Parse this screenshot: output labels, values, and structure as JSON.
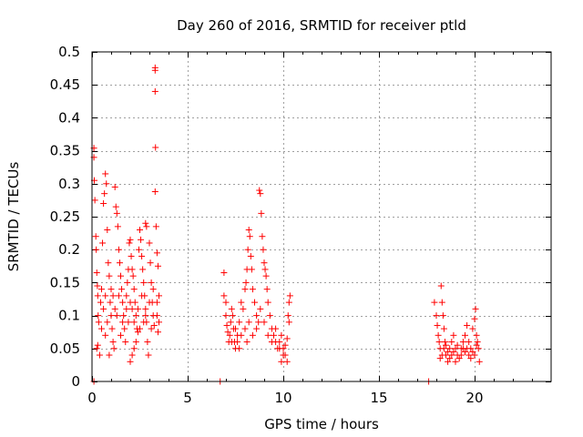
{
  "chart_data": {
    "type": "scatter",
    "title": "Day 260 of 2016, SRMTID for receiver ptld",
    "xlabel": "GPS time / hours",
    "ylabel": "SRMTID / TECUs",
    "xlim": [
      0,
      24
    ],
    "ylim": [
      0,
      0.5
    ],
    "x_ticks": [
      0,
      5,
      10,
      15,
      20
    ],
    "y_ticks": [
      0,
      0.05,
      0.1,
      0.15,
      0.2,
      0.25,
      0.3,
      0.35,
      0.4,
      0.45,
      0.5
    ],
    "x_tick_labels": [
      "0",
      "5",
      "10",
      "15",
      "20"
    ],
    "y_tick_labels": [
      "0",
      "0.05",
      "0.1",
      "0.15",
      "0.2",
      "0.25",
      "0.3",
      "0.35",
      "0.4",
      "0.45",
      "0.5"
    ],
    "grid": true,
    "marker": "+",
    "color": "#ff0000",
    "series": [
      {
        "name": "SRMTID",
        "points": [
          [
            0.1,
            0.354
          ],
          [
            0.1,
            0.34
          ],
          [
            0.12,
            0.305
          ],
          [
            0.15,
            0.275
          ],
          [
            0.2,
            0.22
          ],
          [
            0.22,
            0.2
          ],
          [
            0.25,
            0.165
          ],
          [
            0.28,
            0.145
          ],
          [
            0.3,
            0.13
          ],
          [
            0.32,
            0.1
          ],
          [
            0.35,
            0.09
          ],
          [
            0.3,
            0.055
          ],
          [
            0.25,
            0.05
          ],
          [
            0.4,
            0.04
          ],
          [
            0.45,
            0.12
          ],
          [
            0.5,
            0.14
          ],
          [
            0.55,
            0.21
          ],
          [
            0.6,
            0.27
          ],
          [
            0.65,
            0.285
          ],
          [
            0.7,
            0.315
          ],
          [
            0.75,
            0.3
          ],
          [
            0.8,
            0.23
          ],
          [
            0.85,
            0.18
          ],
          [
            0.9,
            0.16
          ],
          [
            0.95,
            0.12
          ],
          [
            1.0,
            0.1
          ],
          [
            1.05,
            0.08
          ],
          [
            1.1,
            0.06
          ],
          [
            1.15,
            0.05
          ],
          [
            0.9,
            0.04
          ],
          [
            1.2,
            0.295
          ],
          [
            1.25,
            0.265
          ],
          [
            1.3,
            0.255
          ],
          [
            1.35,
            0.235
          ],
          [
            1.4,
            0.2
          ],
          [
            1.45,
            0.18
          ],
          [
            1.5,
            0.16
          ],
          [
            1.55,
            0.14
          ],
          [
            1.6,
            0.12
          ],
          [
            1.65,
            0.1
          ],
          [
            1.7,
            0.08
          ],
          [
            1.75,
            0.06
          ],
          [
            1.8,
            0.13
          ],
          [
            1.85,
            0.15
          ],
          [
            1.9,
            0.17
          ],
          [
            1.95,
            0.21
          ],
          [
            2.0,
            0.215
          ],
          [
            2.05,
            0.19
          ],
          [
            2.1,
            0.17
          ],
          [
            2.15,
            0.16
          ],
          [
            2.2,
            0.14
          ],
          [
            2.25,
            0.12
          ],
          [
            2.3,
            0.1
          ],
          [
            2.35,
            0.08
          ],
          [
            2.0,
            0.03
          ],
          [
            2.1,
            0.04
          ],
          [
            2.2,
            0.05
          ],
          [
            2.3,
            0.06
          ],
          [
            2.4,
            0.075
          ],
          [
            2.45,
            0.2
          ],
          [
            2.5,
            0.23
          ],
          [
            2.55,
            0.215
          ],
          [
            2.6,
            0.19
          ],
          [
            2.65,
            0.17
          ],
          [
            2.7,
            0.15
          ],
          [
            2.75,
            0.13
          ],
          [
            2.8,
            0.11
          ],
          [
            2.85,
            0.09
          ],
          [
            2.9,
            0.06
          ],
          [
            2.95,
            0.04
          ],
          [
            2.8,
            0.24
          ],
          [
            2.85,
            0.235
          ],
          [
            3.0,
            0.21
          ],
          [
            3.05,
            0.18
          ],
          [
            3.1,
            0.15
          ],
          [
            3.15,
            0.12
          ],
          [
            3.2,
            0.1
          ],
          [
            3.25,
            0.085
          ],
          [
            3.3,
            0.476
          ],
          [
            3.3,
            0.472
          ],
          [
            3.3,
            0.44
          ],
          [
            3.32,
            0.355
          ],
          [
            3.3,
            0.288
          ],
          [
            3.35,
            0.235
          ],
          [
            3.4,
            0.195
          ],
          [
            3.45,
            0.175
          ],
          [
            3.5,
            0.13
          ],
          [
            3.5,
            0.09
          ],
          [
            3.45,
            0.075
          ],
          [
            3.4,
            0.1
          ],
          [
            0.6,
            0.11
          ],
          [
            0.7,
            0.13
          ],
          [
            0.8,
            0.09
          ],
          [
            1.0,
            0.14
          ],
          [
            1.2,
            0.11
          ],
          [
            1.4,
            0.13
          ],
          [
            1.6,
            0.09
          ],
          [
            1.8,
            0.11
          ],
          [
            2.0,
            0.12
          ],
          [
            2.2,
            0.09
          ],
          [
            2.4,
            0.11
          ],
          [
            2.6,
            0.13
          ],
          [
            2.8,
            0.1
          ],
          [
            3.0,
            0.12
          ],
          [
            3.2,
            0.14
          ],
          [
            3.4,
            0.12
          ],
          [
            0.5,
            0.08
          ],
          [
            0.7,
            0.07
          ],
          [
            1.1,
            0.13
          ],
          [
            1.3,
            0.1
          ],
          [
            1.5,
            0.07
          ],
          [
            1.9,
            0.09
          ],
          [
            2.1,
            0.11
          ],
          [
            2.5,
            0.08
          ],
          [
            2.7,
            0.09
          ],
          [
            3.1,
            0.08
          ],
          [
            0.1,
            0.0
          ],
          [
            6.7,
            0.0
          ],
          [
            6.9,
            0.165
          ],
          [
            6.9,
            0.13
          ],
          [
            7.0,
            0.12
          ],
          [
            7.0,
            0.1
          ],
          [
            7.05,
            0.085
          ],
          [
            7.1,
            0.075
          ],
          [
            7.15,
            0.06
          ],
          [
            7.2,
            0.07
          ],
          [
            7.25,
            0.09
          ],
          [
            7.3,
            0.11
          ],
          [
            7.35,
            0.1
          ],
          [
            7.4,
            0.08
          ],
          [
            7.45,
            0.06
          ],
          [
            7.5,
            0.05
          ],
          [
            7.6,
            0.07
          ],
          [
            7.7,
            0.09
          ],
          [
            7.8,
            0.12
          ],
          [
            7.9,
            0.11
          ],
          [
            8.0,
            0.14
          ],
          [
            8.05,
            0.15
          ],
          [
            8.1,
            0.17
          ],
          [
            8.15,
            0.2
          ],
          [
            8.2,
            0.23
          ],
          [
            8.25,
            0.22
          ],
          [
            8.3,
            0.19
          ],
          [
            8.35,
            0.17
          ],
          [
            8.4,
            0.14
          ],
          [
            8.5,
            0.12
          ],
          [
            8.6,
            0.1
          ],
          [
            8.7,
            0.09
          ],
          [
            8.75,
            0.29
          ],
          [
            8.8,
            0.285
          ],
          [
            8.85,
            0.255
          ],
          [
            8.9,
            0.22
          ],
          [
            8.95,
            0.2
          ],
          [
            9.0,
            0.18
          ],
          [
            9.05,
            0.17
          ],
          [
            9.1,
            0.16
          ],
          [
            9.15,
            0.14
          ],
          [
            9.2,
            0.12
          ],
          [
            9.3,
            0.1
          ],
          [
            9.4,
            0.08
          ],
          [
            9.5,
            0.07
          ],
          [
            9.6,
            0.06
          ],
          [
            9.7,
            0.05
          ],
          [
            9.8,
            0.06
          ],
          [
            9.9,
            0.07
          ],
          [
            10.0,
            0.05
          ],
          [
            10.1,
            0.04
          ],
          [
            10.2,
            0.03
          ],
          [
            10.25,
            0.1
          ],
          [
            10.3,
            0.12
          ],
          [
            10.35,
            0.13
          ],
          [
            10.3,
            0.09
          ],
          [
            10.2,
            0.065
          ],
          [
            10.1,
            0.055
          ],
          [
            10.0,
            0.04
          ],
          [
            9.9,
            0.03
          ],
          [
            8.0,
            0.08
          ],
          [
            7.6,
            0.06
          ],
          [
            7.8,
            0.07
          ],
          [
            8.2,
            0.09
          ],
          [
            8.4,
            0.07
          ],
          [
            8.6,
            0.08
          ],
          [
            8.8,
            0.11
          ],
          [
            9.0,
            0.09
          ],
          [
            9.2,
            0.07
          ],
          [
            9.4,
            0.06
          ],
          [
            9.6,
            0.08
          ],
          [
            9.8,
            0.05
          ],
          [
            7.3,
            0.06
          ],
          [
            7.5,
            0.08
          ],
          [
            7.7,
            0.05
          ],
          [
            8.1,
            0.06
          ],
          [
            17.6,
            0.0
          ],
          [
            17.9,
            0.12
          ],
          [
            18.0,
            0.1
          ],
          [
            18.05,
            0.085
          ],
          [
            18.1,
            0.07
          ],
          [
            18.15,
            0.06
          ],
          [
            18.2,
            0.05
          ],
          [
            18.25,
            0.145
          ],
          [
            18.3,
            0.12
          ],
          [
            18.35,
            0.1
          ],
          [
            18.4,
            0.08
          ],
          [
            18.45,
            0.06
          ],
          [
            18.5,
            0.04
          ],
          [
            18.6,
            0.03
          ],
          [
            18.7,
            0.05
          ],
          [
            18.8,
            0.06
          ],
          [
            18.9,
            0.07
          ],
          [
            19.0,
            0.05
          ],
          [
            19.1,
            0.04
          ],
          [
            19.2,
            0.035
          ],
          [
            19.3,
            0.05
          ],
          [
            19.4,
            0.06
          ],
          [
            19.5,
            0.07
          ],
          [
            19.6,
            0.085
          ],
          [
            19.7,
            0.06
          ],
          [
            19.8,
            0.05
          ],
          [
            19.9,
            0.08
          ],
          [
            20.0,
            0.095
          ],
          [
            20.05,
            0.11
          ],
          [
            20.1,
            0.07
          ],
          [
            20.15,
            0.06
          ],
          [
            20.2,
            0.05
          ],
          [
            20.25,
            0.03
          ],
          [
            18.3,
            0.04
          ],
          [
            18.5,
            0.055
          ],
          [
            18.7,
            0.035
          ],
          [
            18.9,
            0.045
          ],
          [
            19.1,
            0.055
          ],
          [
            19.3,
            0.04
          ],
          [
            19.5,
            0.045
          ],
          [
            19.7,
            0.04
          ],
          [
            19.9,
            0.045
          ],
          [
            20.1,
            0.055
          ],
          [
            18.2,
            0.035
          ],
          [
            18.6,
            0.045
          ],
          [
            19.0,
            0.03
          ],
          [
            19.4,
            0.05
          ],
          [
            19.8,
            0.035
          ],
          [
            20.0,
            0.04
          ],
          [
            18.4,
            0.05
          ],
          [
            18.8,
            0.04
          ],
          [
            19.6,
            0.05
          ]
        ]
      }
    ]
  }
}
